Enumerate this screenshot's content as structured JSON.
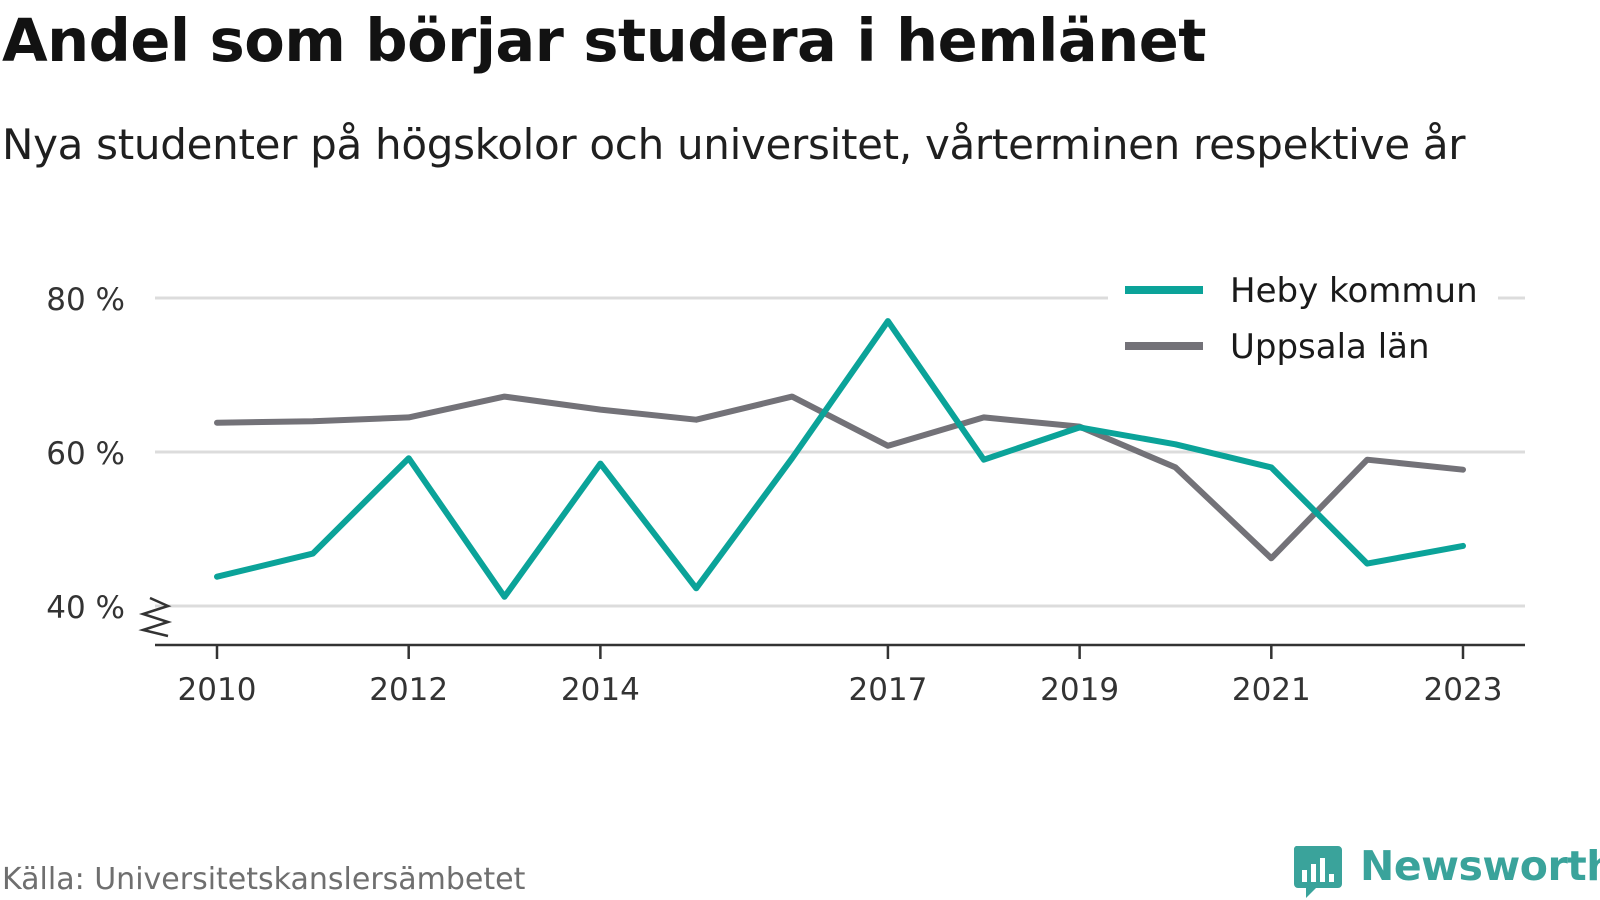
{
  "header": {
    "title": "Andel som börjar studera i hemlänet",
    "subtitle": "Nya studenter på högskolor och universitet, vårterminen respektive år"
  },
  "footer": {
    "source": "Källa: Universitetskanslersämbetet",
    "brand": "Newsworthy",
    "brand_icon": "bar-chart-speech-bubble-icon"
  },
  "colors": {
    "heby": "#0ba399",
    "uppsala": "#737278",
    "grid": "#dcdcdc",
    "axis": "#333333",
    "brand": "#3aa39b"
  },
  "chart_data": {
    "type": "line",
    "x": [
      2010,
      2011,
      2012,
      2013,
      2014,
      2015,
      2016,
      2017,
      2018,
      2019,
      2020,
      2021,
      2022,
      2023
    ],
    "series": [
      {
        "name": "Heby kommun",
        "color": "#0ba399",
        "values": [
          43.8,
          46.8,
          59.2,
          41.2,
          58.5,
          42.3,
          59.2,
          77.0,
          59.0,
          63.2,
          61.0,
          58.0,
          45.5,
          47.8
        ]
      },
      {
        "name": "Uppsala län",
        "color": "#737278",
        "values": [
          63.8,
          64.0,
          64.5,
          67.2,
          65.5,
          64.2,
          67.2,
          60.8,
          64.5,
          63.3,
          58.0,
          46.2,
          59.0,
          57.7
        ]
      }
    ],
    "xticks": [
      2010,
      2012,
      2014,
      2017,
      2019,
      2021,
      2023
    ],
    "xtick_labels": [
      "2010",
      "2012",
      "2014",
      "2017",
      "2019",
      "2021",
      "2023"
    ],
    "yticks": [
      40,
      60,
      80
    ],
    "ytick_labels": [
      "40 %",
      "60 %",
      "80 %"
    ],
    "ylim": [
      35,
      82
    ],
    "axis_break": true,
    "grid": true,
    "legend_position": "top-right"
  }
}
